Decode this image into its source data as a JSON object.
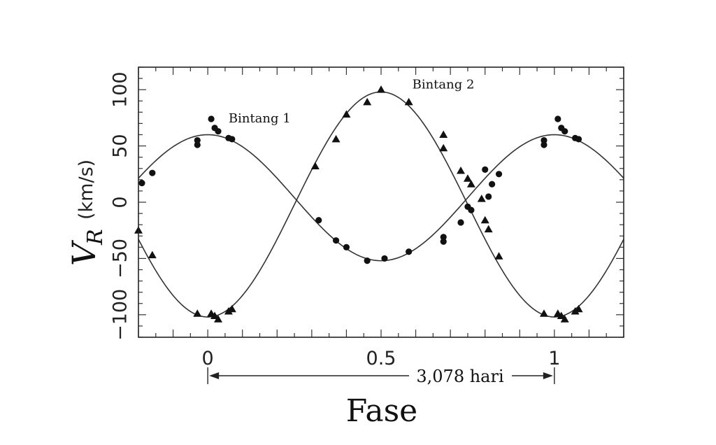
{
  "chart_data": {
    "type": "scatter",
    "xlabel": "Fase",
    "ylabel": "V",
    "ylabel_subscript": "R",
    "ylabel_unit": "(km/s)",
    "xlim": [
      -0.2,
      1.2
    ],
    "ylim": [
      -120,
      120
    ],
    "xticks": [
      0,
      0.5,
      1
    ],
    "xtick_labels": [
      "0",
      "0.5",
      "1"
    ],
    "yticks": [
      100,
      50,
      0,
      -50,
      -100
    ],
    "ytick_labels": [
      "100",
      "50",
      "0",
      "−50",
      "−100"
    ],
    "period_annotation": {
      "text": "3,078 hari",
      "from": 0,
      "to": 1
    },
    "series": [
      {
        "name": "Bintang 1",
        "marker": "circle",
        "label_at": [
          0.06,
          71
        ],
        "curve": {
          "offset": 4,
          "amplitude": 56
        },
        "points": [
          [
            -0.19,
            17
          ],
          [
            -0.16,
            26
          ],
          [
            -0.03,
            51
          ],
          [
            -0.03,
            55
          ],
          [
            0.01,
            74
          ],
          [
            0.02,
            66
          ],
          [
            0.03,
            63
          ],
          [
            0.06,
            57
          ],
          [
            0.07,
            56
          ],
          [
            0.32,
            -16
          ],
          [
            0.37,
            -34
          ],
          [
            0.4,
            -40
          ],
          [
            0.46,
            -52
          ],
          [
            0.51,
            -50
          ],
          [
            0.58,
            -44
          ],
          [
            0.68,
            -31
          ],
          [
            0.68,
            -35
          ],
          [
            0.73,
            -18
          ],
          [
            0.75,
            -4
          ],
          [
            0.76,
            -7
          ],
          [
            0.8,
            29
          ],
          [
            0.81,
            5
          ],
          [
            0.82,
            16
          ],
          [
            0.84,
            25
          ],
          [
            0.97,
            51
          ],
          [
            0.97,
            55
          ],
          [
            1.01,
            74
          ],
          [
            1.02,
            66
          ],
          [
            1.03,
            63
          ],
          [
            1.06,
            57
          ],
          [
            1.07,
            56
          ]
        ]
      },
      {
        "name": "Bintang 2",
        "marker": "triangle",
        "label_at": [
          0.59,
          101
        ],
        "curve": {
          "offset": -2,
          "amplitude": -100
        },
        "points": [
          [
            -0.2,
            -25
          ],
          [
            -0.16,
            -47
          ],
          [
            -0.03,
            -99
          ],
          [
            0.01,
            -99
          ],
          [
            0.02,
            -101
          ],
          [
            0.03,
            -104
          ],
          [
            0.06,
            -97
          ],
          [
            0.07,
            -95
          ],
          [
            0.31,
            32
          ],
          [
            0.37,
            56
          ],
          [
            0.4,
            78
          ],
          [
            0.46,
            89
          ],
          [
            0.5,
            100
          ],
          [
            0.58,
            89
          ],
          [
            0.68,
            60
          ],
          [
            0.68,
            48
          ],
          [
            0.73,
            28
          ],
          [
            0.75,
            21
          ],
          [
            0.76,
            16
          ],
          [
            0.79,
            3
          ],
          [
            0.8,
            -16
          ],
          [
            0.81,
            -24
          ],
          [
            0.84,
            -48
          ],
          [
            0.97,
            -99
          ],
          [
            1.01,
            -99
          ],
          [
            1.02,
            -101
          ],
          [
            1.03,
            -104
          ],
          [
            1.06,
            -97
          ],
          [
            1.07,
            -95
          ]
        ]
      }
    ]
  }
}
